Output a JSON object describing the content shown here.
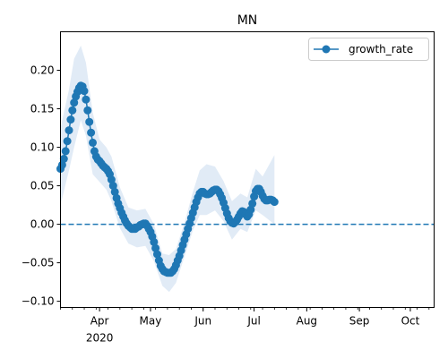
{
  "chart_data": {
    "type": "line",
    "title": "MN",
    "xlabel": "",
    "ylabel": "",
    "x_type": "date",
    "xlim": [
      "2020-03-09",
      "2020-10-15"
    ],
    "ylim": [
      -0.108,
      0.25
    ],
    "grid": false,
    "legend_position": "top-right",
    "colors": {
      "line": "#1f77b4",
      "band": "#dce8f4",
      "baseline": "#1f77b4"
    },
    "y_ticks": [
      {
        "value": -0.1,
        "label": "−0.10"
      },
      {
        "value": -0.05,
        "label": "−0.05"
      },
      {
        "value": 0.0,
        "label": "0.00"
      },
      {
        "value": 0.05,
        "label": "0.05"
      },
      {
        "value": 0.1,
        "label": "0.10"
      },
      {
        "value": 0.15,
        "label": "0.15"
      },
      {
        "value": 0.2,
        "label": "0.20"
      }
    ],
    "x_ticks": [
      {
        "date": "2020-04-01",
        "label": "Apr",
        "sublabel": "2020"
      },
      {
        "date": "2020-05-01",
        "label": "May",
        "sublabel": ""
      },
      {
        "date": "2020-06-01",
        "label": "Jun",
        "sublabel": ""
      },
      {
        "date": "2020-07-01",
        "label": "Jul",
        "sublabel": ""
      },
      {
        "date": "2020-08-01",
        "label": "Aug",
        "sublabel": ""
      },
      {
        "date": "2020-09-01",
        "label": "Sep",
        "sublabel": ""
      },
      {
        "date": "2020-10-01",
        "label": "Oct",
        "sublabel": ""
      }
    ],
    "minor_tick_step_days": 7,
    "baseline": {
      "y": 0.0,
      "style": "dashed"
    },
    "series": [
      {
        "name": "growth_rate",
        "marker": "circle",
        "points": [
          [
            "2020-03-09",
            0.072
          ],
          [
            "2020-03-10",
            0.077
          ],
          [
            "2020-03-11",
            0.085
          ],
          [
            "2020-03-12",
            0.095
          ],
          [
            "2020-03-13",
            0.108
          ],
          [
            "2020-03-14",
            0.122
          ],
          [
            "2020-03-15",
            0.136
          ],
          [
            "2020-03-16",
            0.148
          ],
          [
            "2020-03-17",
            0.158
          ],
          [
            "2020-03-18",
            0.166
          ],
          [
            "2020-03-19",
            0.172
          ],
          [
            "2020-03-20",
            0.177
          ],
          [
            "2020-03-21",
            0.18
          ],
          [
            "2020-03-22",
            0.179
          ],
          [
            "2020-03-23",
            0.173
          ],
          [
            "2020-03-24",
            0.162
          ],
          [
            "2020-03-25",
            0.148
          ],
          [
            "2020-03-26",
            0.133
          ],
          [
            "2020-03-27",
            0.119
          ],
          [
            "2020-03-28",
            0.106
          ],
          [
            "2020-03-29",
            0.095
          ],
          [
            "2020-03-30",
            0.088
          ],
          [
            "2020-03-31",
            0.084
          ],
          [
            "2020-04-01",
            0.082
          ],
          [
            "2020-04-02",
            0.079
          ],
          [
            "2020-04-03",
            0.076
          ],
          [
            "2020-04-04",
            0.074
          ],
          [
            "2020-04-05",
            0.072
          ],
          [
            "2020-04-06",
            0.069
          ],
          [
            "2020-04-07",
            0.065
          ],
          [
            "2020-04-08",
            0.058
          ],
          [
            "2020-04-09",
            0.05
          ],
          [
            "2020-04-10",
            0.042
          ],
          [
            "2020-04-11",
            0.034
          ],
          [
            "2020-04-12",
            0.027
          ],
          [
            "2020-04-13",
            0.021
          ],
          [
            "2020-04-14",
            0.015
          ],
          [
            "2020-04-15",
            0.01
          ],
          [
            "2020-04-16",
            0.005
          ],
          [
            "2020-04-17",
            0.001
          ],
          [
            "2020-04-18",
            -0.002
          ],
          [
            "2020-04-19",
            -0.004
          ],
          [
            "2020-04-20",
            -0.006
          ],
          [
            "2020-04-21",
            -0.006
          ],
          [
            "2020-04-22",
            -0.006
          ],
          [
            "2020-04-23",
            -0.004
          ],
          [
            "2020-04-24",
            -0.003
          ],
          [
            "2020-04-25",
            -0.001
          ],
          [
            "2020-04-26",
            0.0
          ],
          [
            "2020-04-27",
            0.001
          ],
          [
            "2020-04-28",
            0.001
          ],
          [
            "2020-04-29",
            -0.002
          ],
          [
            "2020-04-30",
            -0.006
          ],
          [
            "2020-05-01",
            -0.01
          ],
          [
            "2020-05-02",
            -0.016
          ],
          [
            "2020-05-03",
            -0.023
          ],
          [
            "2020-05-04",
            -0.031
          ],
          [
            "2020-05-05",
            -0.039
          ],
          [
            "2020-05-06",
            -0.047
          ],
          [
            "2020-05-07",
            -0.054
          ],
          [
            "2020-05-08",
            -0.058
          ],
          [
            "2020-05-09",
            -0.061
          ],
          [
            "2020-05-10",
            -0.062
          ],
          [
            "2020-05-11",
            -0.063
          ],
          [
            "2020-05-12",
            -0.063
          ],
          [
            "2020-05-13",
            -0.063
          ],
          [
            "2020-05-14",
            -0.061
          ],
          [
            "2020-05-15",
            -0.058
          ],
          [
            "2020-05-16",
            -0.053
          ],
          [
            "2020-05-17",
            -0.047
          ],
          [
            "2020-05-18",
            -0.041
          ],
          [
            "2020-05-19",
            -0.034
          ],
          [
            "2020-05-20",
            -0.027
          ],
          [
            "2020-05-21",
            -0.02
          ],
          [
            "2020-05-22",
            -0.013
          ],
          [
            "2020-05-23",
            -0.006
          ],
          [
            "2020-05-24",
            0.001
          ],
          [
            "2020-05-25",
            0.008
          ],
          [
            "2020-05-26",
            0.015
          ],
          [
            "2020-05-27",
            0.022
          ],
          [
            "2020-05-28",
            0.029
          ],
          [
            "2020-05-29",
            0.035
          ],
          [
            "2020-05-30",
            0.04
          ],
          [
            "2020-05-31",
            0.042
          ],
          [
            "2020-06-01",
            0.042
          ],
          [
            "2020-06-02",
            0.04
          ],
          [
            "2020-06-03",
            0.039
          ],
          [
            "2020-06-04",
            0.039
          ],
          [
            "2020-06-05",
            0.04
          ],
          [
            "2020-06-06",
            0.042
          ],
          [
            "2020-06-07",
            0.044
          ],
          [
            "2020-06-08",
            0.045
          ],
          [
            "2020-06-09",
            0.045
          ],
          [
            "2020-06-10",
            0.043
          ],
          [
            "2020-06-11",
            0.039
          ],
          [
            "2020-06-12",
            0.034
          ],
          [
            "2020-06-13",
            0.028
          ],
          [
            "2020-06-14",
            0.021
          ],
          [
            "2020-06-15",
            0.014
          ],
          [
            "2020-06-16",
            0.008
          ],
          [
            "2020-06-17",
            0.004
          ],
          [
            "2020-06-18",
            0.002
          ],
          [
            "2020-06-19",
            0.001
          ],
          [
            "2020-06-20",
            0.003
          ],
          [
            "2020-06-21",
            0.006
          ],
          [
            "2020-06-22",
            0.01
          ],
          [
            "2020-06-23",
            0.014
          ],
          [
            "2020-06-24",
            0.017
          ],
          [
            "2020-06-25",
            0.016
          ],
          [
            "2020-06-26",
            0.013
          ],
          [
            "2020-06-27",
            0.01
          ],
          [
            "2020-06-28",
            0.013
          ],
          [
            "2020-06-29",
            0.019
          ],
          [
            "2020-06-30",
            0.027
          ],
          [
            "2020-07-01",
            0.036
          ],
          [
            "2020-07-02",
            0.043
          ],
          [
            "2020-07-03",
            0.046
          ],
          [
            "2020-07-04",
            0.046
          ],
          [
            "2020-07-05",
            0.042
          ],
          [
            "2020-07-06",
            0.037
          ],
          [
            "2020-07-07",
            0.033
          ],
          [
            "2020-07-08",
            0.031
          ],
          [
            "2020-07-09",
            0.031
          ],
          [
            "2020-07-10",
            0.032
          ],
          [
            "2020-07-11",
            0.032
          ],
          [
            "2020-07-12",
            0.031
          ],
          [
            "2020-07-13",
            0.029
          ]
        ]
      }
    ],
    "confidence_band": {
      "points": [
        [
          "2020-03-09",
          0.025,
          0.125
        ],
        [
          "2020-03-14",
          0.07,
          0.175
        ],
        [
          "2020-03-17",
          0.1,
          0.215
        ],
        [
          "2020-03-21",
          0.135,
          0.232
        ],
        [
          "2020-03-24",
          0.115,
          0.21
        ],
        [
          "2020-03-28",
          0.065,
          0.145
        ],
        [
          "2020-04-01",
          0.055,
          0.11
        ],
        [
          "2020-04-05",
          0.045,
          0.1
        ],
        [
          "2020-04-08",
          0.03,
          0.088
        ],
        [
          "2020-04-13",
          -0.005,
          0.048
        ],
        [
          "2020-04-18",
          -0.025,
          0.022
        ],
        [
          "2020-04-23",
          -0.03,
          0.018
        ],
        [
          "2020-04-28",
          -0.028,
          0.02
        ],
        [
          "2020-05-03",
          -0.048,
          0.0
        ],
        [
          "2020-05-08",
          -0.08,
          -0.038
        ],
        [
          "2020-05-12",
          -0.088,
          -0.04
        ],
        [
          "2020-05-16",
          -0.076,
          -0.032
        ],
        [
          "2020-05-21",
          -0.042,
          0.002
        ],
        [
          "2020-05-26",
          -0.008,
          0.042
        ],
        [
          "2020-05-30",
          0.012,
          0.07
        ],
        [
          "2020-06-03",
          0.012,
          0.078
        ],
        [
          "2020-06-08",
          0.018,
          0.075
        ],
        [
          "2020-06-13",
          0.004,
          0.056
        ],
        [
          "2020-06-18",
          -0.02,
          0.03
        ],
        [
          "2020-06-23",
          -0.006,
          0.04
        ],
        [
          "2020-06-27",
          -0.01,
          0.035
        ],
        [
          "2020-07-02",
          0.018,
          0.072
        ],
        [
          "2020-07-06",
          0.012,
          0.062
        ],
        [
          "2020-07-13",
          0.0,
          0.09
        ]
      ]
    }
  }
}
